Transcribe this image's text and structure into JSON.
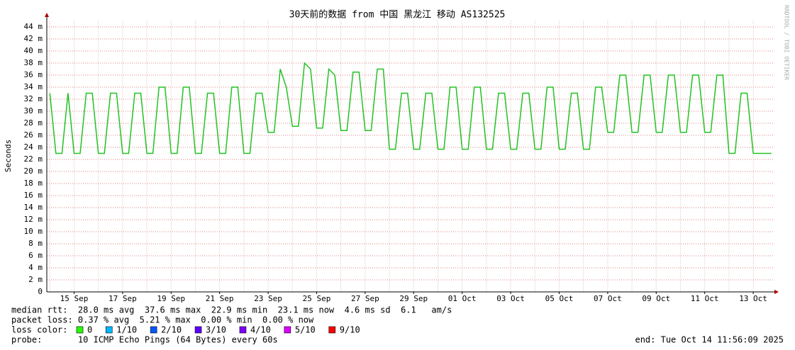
{
  "chart_data": {
    "type": "line",
    "title": "30天前的数据 from 中国 黑龙江 移动 AS132525",
    "y_label": "Seconds",
    "watermark": "RRDTOOL / TOBI OETIKER",
    "ylim": [
      0,
      45
    ],
    "yticks": [
      0,
      {
        "value": 2,
        "label": "2 m"
      },
      {
        "value": 4,
        "label": "4 m"
      },
      {
        "value": 6,
        "label": "6 m"
      },
      {
        "value": 8,
        "label": "8 m"
      },
      {
        "value": 10,
        "label": "10 m"
      },
      {
        "value": 12,
        "label": "12 m"
      },
      {
        "value": 14,
        "label": "14 m"
      },
      {
        "value": 16,
        "label": "16 m"
      },
      {
        "value": 18,
        "label": "18 m"
      },
      {
        "value": 20,
        "label": "20 m"
      },
      {
        "value": 22,
        "label": "22 m"
      },
      {
        "value": 24,
        "label": "24 m"
      },
      {
        "value": 26,
        "label": "26 m"
      },
      {
        "value": 28,
        "label": "28 m"
      },
      {
        "value": 30,
        "label": "30 m"
      },
      {
        "value": 32,
        "label": "32 m"
      },
      {
        "value": 34,
        "label": "34 m"
      },
      {
        "value": 36,
        "label": "36 m"
      },
      {
        "value": 38,
        "label": "38 m"
      },
      {
        "value": 40,
        "label": "40 m"
      },
      {
        "value": 42,
        "label": "42 m"
      },
      {
        "value": 44,
        "label": "44 m"
      }
    ],
    "grid": true,
    "categories": [
      null,
      null,
      null,
      null,
      "15 Sep",
      null,
      null,
      null,
      null,
      null,
      null,
      null,
      "17 Sep",
      null,
      null,
      null,
      null,
      null,
      null,
      null,
      "19 Sep",
      null,
      null,
      null,
      null,
      null,
      null,
      null,
      "21 Sep",
      null,
      null,
      null,
      null,
      null,
      null,
      null,
      "23 Sep",
      null,
      null,
      null,
      null,
      null,
      null,
      null,
      "25 Sep",
      null,
      null,
      null,
      null,
      null,
      null,
      null,
      "27 Sep",
      null,
      null,
      null,
      null,
      null,
      null,
      null,
      "29 Sep",
      null,
      null,
      null,
      null,
      null,
      null,
      null,
      "01 Oct",
      null,
      null,
      null,
      null,
      null,
      null,
      null,
      "03 Oct",
      null,
      null,
      null,
      null,
      null,
      null,
      null,
      "05 Oct",
      null,
      null,
      null,
      null,
      null,
      null,
      null,
      "07 Oct",
      null,
      null,
      null,
      null,
      null,
      null,
      null,
      "09 Oct",
      null,
      null,
      null,
      null,
      null,
      null,
      null,
      "11 Oct",
      null,
      null,
      null,
      null,
      null,
      null,
      null,
      "13 Oct",
      null,
      null,
      null
    ],
    "series": [
      {
        "name": "median rtt",
        "color": "#22c322",
        "values": [
          33,
          23,
          23,
          33,
          23,
          23,
          33,
          33,
          23,
          23,
          33,
          33,
          23,
          23,
          33,
          33,
          23,
          23,
          34,
          34,
          23,
          23,
          34,
          34,
          23,
          23,
          33,
          33,
          23,
          23,
          34,
          34,
          23,
          23,
          33,
          33,
          26.5,
          26.5,
          37,
          34,
          27.5,
          27.5,
          38,
          37,
          27.2,
          27.2,
          37,
          36,
          26.8,
          26.8,
          36.5,
          36.5,
          26.8,
          26.8,
          37,
          37,
          23.7,
          23.7,
          33,
          33,
          23.7,
          23.7,
          33,
          33,
          23.7,
          23.7,
          34,
          34,
          23.7,
          23.7,
          34,
          34,
          23.7,
          23.7,
          33,
          33,
          23.7,
          23.7,
          33,
          33,
          23.7,
          23.7,
          34,
          34,
          23.7,
          23.7,
          33,
          33,
          23.7,
          23.7,
          34,
          34,
          26.5,
          26.5,
          36,
          36,
          26.5,
          26.5,
          36,
          36,
          26.5,
          26.5,
          36,
          36,
          26.5,
          26.5,
          36,
          36,
          26.5,
          26.5,
          36,
          36,
          23,
          23,
          33,
          33,
          23,
          23,
          23,
          23
        ]
      }
    ],
    "stats": [
      "median rtt:  28.0 ms avg  37.6 ms max  22.9 ms min  23.1 ms now  4.6 ms sd  6.1   am/s",
      "packet loss: 0.37 % avg  5.21 % max  0.00 % min  0.00 % now"
    ],
    "loss_legend": {
      "label": "loss color:",
      "items": [
        {
          "label": "0",
          "color": "#26ff00"
        },
        {
          "label": "1/10",
          "color": "#00b8ff"
        },
        {
          "label": "2/10",
          "color": "#0059ff"
        },
        {
          "label": "3/10",
          "color": "#5e00ff"
        },
        {
          "label": "4/10",
          "color": "#7e00ff"
        },
        {
          "label": "5/10",
          "color": "#dd00ff"
        },
        {
          "label": "9/10",
          "color": "#ff0000"
        }
      ]
    },
    "probe": "probe:       10 ICMP Echo Pings (64 Bytes) every 60s",
    "end": "end: Tue Oct 14 11:56:09 2025"
  }
}
